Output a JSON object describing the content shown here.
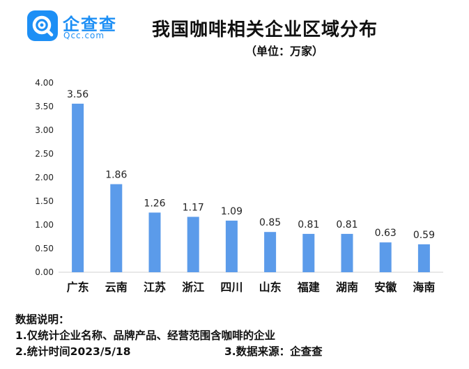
{
  "brand": {
    "name": "企查查",
    "sub": "Qcc.com",
    "color": "#1d8ff5"
  },
  "header": {
    "title": "我国咖啡相关企业区域分布",
    "unit": "（单位：万家）"
  },
  "chart_data": {
    "type": "bar",
    "title": "我国咖啡相关企业区域分布",
    "subtitle": "（单位：万家）",
    "categories": [
      "广东",
      "云南",
      "江苏",
      "浙江",
      "四川",
      "山东",
      "福建",
      "湖南",
      "安徽",
      "海南"
    ],
    "values": [
      3.56,
      1.86,
      1.26,
      1.17,
      1.09,
      0.85,
      0.81,
      0.81,
      0.63,
      0.59
    ],
    "value_labels": [
      "3.56",
      "1.86",
      "1.26",
      "1.17",
      "1.09",
      "0.85",
      "0.81",
      "0.81",
      "0.63",
      "0.59"
    ],
    "y_ticks": [
      "0.00",
      "0.50",
      "1.00",
      "1.50",
      "2.00",
      "2.50",
      "3.00",
      "3.50",
      "4.00"
    ],
    "ylim": [
      0,
      4
    ],
    "bar_color": "#5b9bea",
    "grid": false,
    "xlabel": "",
    "ylabel": ""
  },
  "notes": {
    "heading": "数据说明：",
    "line1": "1.仅统计企业名称、品牌产品、经营范围含咖啡的企业",
    "line2": "2.统计时间2023/5/18",
    "line3": "3.数据来源：企查查"
  }
}
